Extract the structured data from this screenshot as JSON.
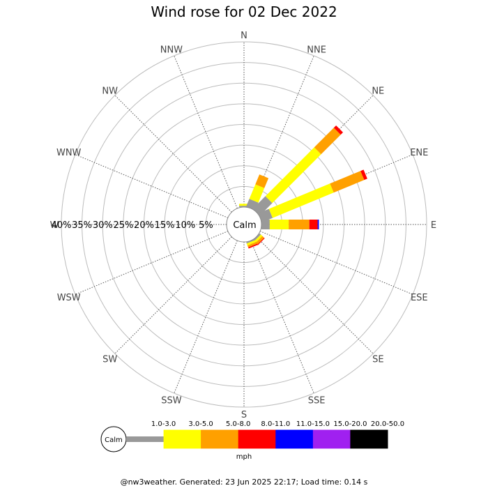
{
  "chart_data": {
    "type": "windrose",
    "title": "Wind rose for 02 Dec 2022",
    "directions": [
      "N",
      "NNE",
      "NE",
      "ENE",
      "E",
      "ESE",
      "SE",
      "SSE",
      "S",
      "SSW",
      "SW",
      "WSW",
      "W",
      "WNW",
      "NW",
      "NNW"
    ],
    "ring_labels": [
      "5%",
      "10%",
      "15%",
      "20%",
      "25%",
      "30%",
      "35%",
      "40%"
    ],
    "rmax_percent": 40,
    "calm_label": "Calm",
    "speed_bins": [
      {
        "label": "1.0-3.0",
        "color": "#999999"
      },
      {
        "label": "3.0-5.0",
        "color": "#ffff00"
      },
      {
        "label": "5.0-8.0",
        "color": "#ffa000"
      },
      {
        "label": "8.0-11.0",
        "color": "#ff0000"
      },
      {
        "label": "11.0-15.0",
        "color": "#0000ff"
      },
      {
        "label": "15.0-20.0",
        "color": "#a020f0"
      },
      {
        "label": "20.0-50.0",
        "color": "#000000"
      }
    ],
    "series": [
      {
        "direction": "N",
        "values": [
          0.3,
          0.5,
          0,
          0,
          0,
          0,
          0
        ]
      },
      {
        "direction": "NNE",
        "values": [
          2.0,
          3.8,
          2.6,
          0,
          0,
          0,
          0
        ]
      },
      {
        "direction": "NE",
        "values": [
          4.3,
          16.7,
          6.7,
          0.8,
          0,
          0,
          0
        ]
      },
      {
        "direction": "ENE",
        "values": [
          2.8,
          16.0,
          8.0,
          0.8,
          0,
          0,
          0
        ]
      },
      {
        "direction": "E",
        "values": [
          2.0,
          4.6,
          5.0,
          2.0,
          0.3,
          0,
          0
        ]
      },
      {
        "direction": "ESE",
        "values": [
          0,
          0,
          0,
          0,
          0,
          0,
          0
        ]
      },
      {
        "direction": "SE",
        "values": [
          0.4,
          0.5,
          0.6,
          0.2,
          0,
          0,
          0
        ]
      },
      {
        "direction": "SSE",
        "values": [
          0.3,
          0.5,
          0.5,
          0.3,
          0,
          0,
          0
        ]
      },
      {
        "direction": "S",
        "values": [
          0,
          0,
          0,
          0,
          0,
          0,
          0
        ]
      },
      {
        "direction": "SSW",
        "values": [
          0,
          0,
          0,
          0,
          0,
          0,
          0
        ]
      },
      {
        "direction": "SW",
        "values": [
          0,
          0,
          0,
          0,
          0,
          0,
          0
        ]
      },
      {
        "direction": "WSW",
        "values": [
          0,
          0,
          0,
          0,
          0,
          0,
          0
        ]
      },
      {
        "direction": "W",
        "values": [
          0,
          0,
          0,
          0,
          0,
          0,
          0
        ]
      },
      {
        "direction": "WNW",
        "values": [
          0,
          0,
          0,
          0,
          0,
          0,
          0
        ]
      },
      {
        "direction": "NW",
        "values": [
          0,
          0,
          0,
          0,
          0,
          0,
          0
        ]
      },
      {
        "direction": "NNW",
        "values": [
          0,
          0,
          0,
          0,
          0,
          0,
          0
        ]
      }
    ],
    "legend_unit": "mph",
    "footer": "@nw3weather. Generated: 23 Jun 2025 22:17; Load time: 0.14 s"
  }
}
